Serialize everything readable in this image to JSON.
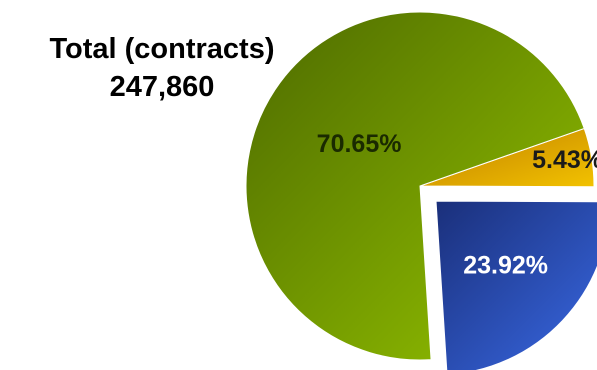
{
  "chart_data": {
    "type": "pie",
    "title": "Total (contracts)",
    "total_value": "247,860",
    "slices": [
      {
        "label": "5.43%",
        "value": 5.43,
        "color": "#e6ae00",
        "light": "#f2c200",
        "dark": "#c07f00",
        "label_color": "#1a1a1a",
        "exploded": false
      },
      {
        "label": "23.92%",
        "value": 23.92,
        "color": "#2a47b8",
        "light": "#3a6be8",
        "dark": "#1a2f7a",
        "label_color": "#ffffff",
        "exploded": true
      },
      {
        "label": "70.65%",
        "value": 70.65,
        "color": "#6f9a00",
        "light": "#95c400",
        "dark": "#4d6a00",
        "label_color": "#1a2a00",
        "exploded": false
      }
    ],
    "legend": "none",
    "grid": false
  }
}
